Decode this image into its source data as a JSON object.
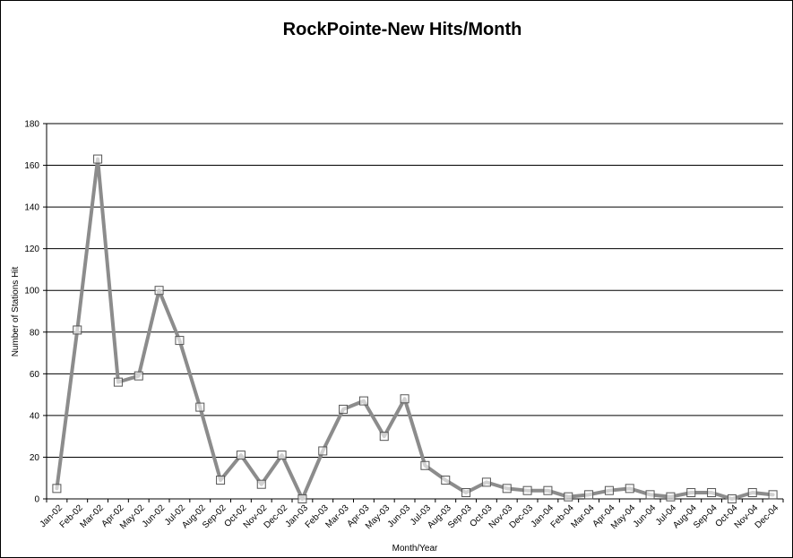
{
  "chart_data": {
    "type": "line",
    "title": "RockPointe-New Hits/Month",
    "xlabel": "Month/Year",
    "ylabel": "Number of Stations Hit",
    "ylim": [
      0,
      180
    ],
    "yticks": [
      0,
      20,
      40,
      60,
      80,
      100,
      120,
      140,
      160,
      180
    ],
    "grid": true,
    "legend": "none",
    "categories": [
      "Jan-02",
      "Feb-02",
      "Mar-02",
      "Apr-02",
      "May-02",
      "Jun-02",
      "Jul-02",
      "Aug-02",
      "Sep-02",
      "Oct-02",
      "Nov-02",
      "Dec-02",
      "Jan-03",
      "Feb-03",
      "Mar-03",
      "Apr-03",
      "May-03",
      "Jun-03",
      "Jul-03",
      "Aug-03",
      "Sep-03",
      "Oct-03",
      "Nov-03",
      "Dec-03",
      "Jan-04",
      "Feb-04",
      "Mar-04",
      "Apr-04",
      "May-04",
      "Jun-04",
      "Jul-04",
      "Aug-04",
      "Sep-04",
      "Oct-04",
      "Nov-04",
      "Dec-04"
    ],
    "series": [
      {
        "values": [
          5,
          81,
          163,
          56,
          59,
          100,
          76,
          44,
          9,
          21,
          7,
          21,
          0,
          23,
          43,
          47,
          30,
          48,
          16,
          9,
          3,
          8,
          5,
          4,
          4,
          1,
          2,
          4,
          5,
          2,
          1,
          3,
          3,
          0,
          3,
          2
        ],
        "color": "#8c8c8c",
        "marker": "square"
      }
    ]
  }
}
